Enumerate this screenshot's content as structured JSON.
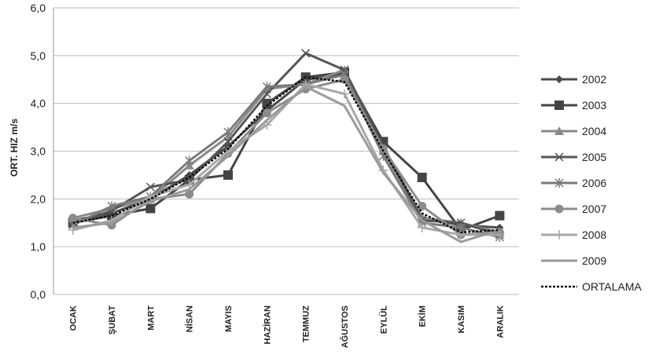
{
  "chart_data": {
    "type": "line",
    "ylabel": "ORT. HIZ m/s",
    "xlabel": "",
    "ylim": [
      0,
      6
    ],
    "yticks": [
      "0,0",
      "1,0",
      "2,0",
      "3,0",
      "4,0",
      "5,0",
      "6,0"
    ],
    "grid": true,
    "legend_position": "right",
    "categories": [
      "OCAK",
      "ŞUBAT",
      "MART",
      "NİSAN",
      "MAYIS",
      "HAZİRAN",
      "TEMMUZ",
      "AĞUSTOS",
      "EYLÜL",
      "EKİM",
      "KASIM",
      "ARALIK"
    ],
    "series": [
      {
        "name": "2002",
        "color": "#4a4a4a",
        "marker": "diamond",
        "dash": "",
        "values": [
          1.55,
          1.7,
          2.0,
          2.5,
          3.1,
          3.85,
          4.5,
          4.6,
          3.1,
          1.6,
          1.45,
          1.4
        ]
      },
      {
        "name": "2003",
        "color": "#444444",
        "marker": "square",
        "dash": "",
        "values": [
          1.5,
          1.65,
          1.8,
          2.4,
          2.5,
          4.0,
          4.55,
          4.65,
          3.2,
          2.45,
          1.35,
          1.65
        ]
      },
      {
        "name": "2004",
        "color": "#8a8a8a",
        "marker": "triangle",
        "dash": "",
        "values": [
          1.6,
          1.8,
          2.0,
          2.7,
          3.3,
          4.3,
          4.4,
          4.7,
          3.0,
          1.6,
          1.5,
          1.3
        ]
      },
      {
        "name": "2005",
        "color": "#555555",
        "marker": "x",
        "dash": "",
        "values": [
          1.5,
          1.75,
          2.25,
          2.4,
          3.2,
          4.2,
          5.05,
          4.7,
          3.1,
          1.55,
          1.5,
          1.25
        ]
      },
      {
        "name": "2006",
        "color": "#7a7a7a",
        "marker": "star",
        "dash": "",
        "values": [
          1.45,
          1.85,
          2.05,
          2.8,
          3.4,
          4.35,
          4.4,
          4.6,
          2.9,
          1.5,
          1.4,
          1.2
        ]
      },
      {
        "name": "2007",
        "color": "#8c8c8c",
        "marker": "circle",
        "dash": "",
        "values": [
          1.6,
          1.45,
          2.0,
          2.1,
          2.95,
          3.8,
          4.3,
          4.5,
          3.05,
          1.85,
          1.25,
          1.3
        ]
      },
      {
        "name": "2008",
        "color": "#a8a8a8",
        "marker": "plus",
        "dash": "",
        "values": [
          1.35,
          1.55,
          2.05,
          2.3,
          3.0,
          3.55,
          4.4,
          4.2,
          2.6,
          1.4,
          1.25,
          1.25
        ]
      },
      {
        "name": "2009",
        "color": "#9a9a9a",
        "marker": "none",
        "dash": "",
        "values": [
          1.4,
          1.5,
          1.95,
          2.2,
          2.9,
          3.65,
          4.35,
          3.95,
          2.55,
          1.55,
          1.1,
          1.35
        ]
      },
      {
        "name": "ORTALAMA",
        "color": "#111111",
        "marker": "none",
        "dash": "3,2",
        "values": [
          1.5,
          1.65,
          2.0,
          2.45,
          3.05,
          3.95,
          4.55,
          4.45,
          3.0,
          1.7,
          1.3,
          1.35
        ]
      }
    ]
  }
}
